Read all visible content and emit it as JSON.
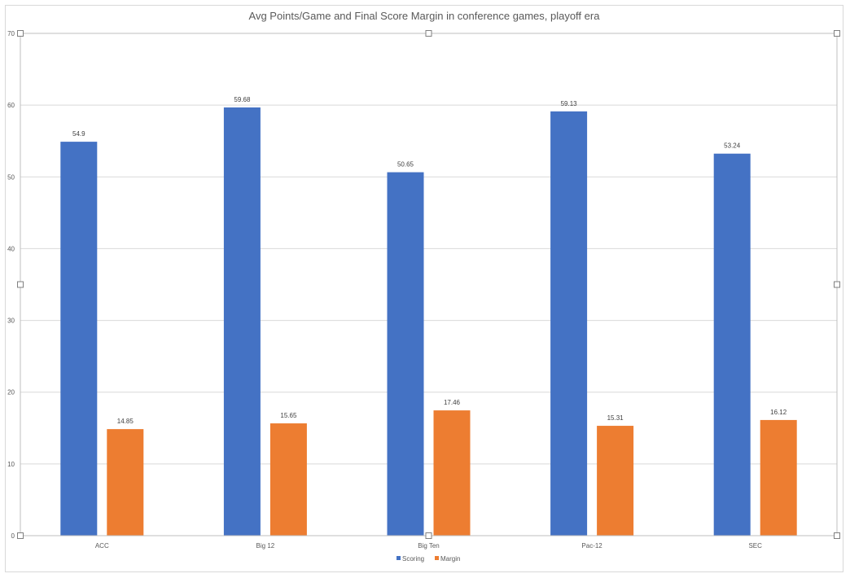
{
  "chart_data": {
    "type": "bar",
    "title": "Avg Points/Game and Final Score Margin in conference games, playoff era",
    "categories": [
      "ACC",
      "Big 12",
      "Big Ten",
      "Pac-12",
      "SEC"
    ],
    "series": [
      {
        "name": "Scoring",
        "color": "#4472c4",
        "values": [
          54.9,
          59.68,
          50.65,
          59.13,
          53.24
        ],
        "labels": [
          "54.9",
          "59.68",
          "50.65",
          "59.13",
          "53.24"
        ]
      },
      {
        "name": "Margin",
        "color": "#ed7d31",
        "values": [
          14.85,
          15.65,
          17.46,
          15.31,
          16.12
        ],
        "labels": [
          "14.85",
          "15.65",
          "17.46",
          "15.31",
          "16.12"
        ]
      }
    ],
    "ylim": [
      0,
      70
    ],
    "yticks": [
      "0",
      "10",
      "20",
      "30",
      "40",
      "50",
      "60",
      "70"
    ],
    "xlabel": "",
    "ylabel": "",
    "grid": true,
    "legend_position": "bottom"
  }
}
